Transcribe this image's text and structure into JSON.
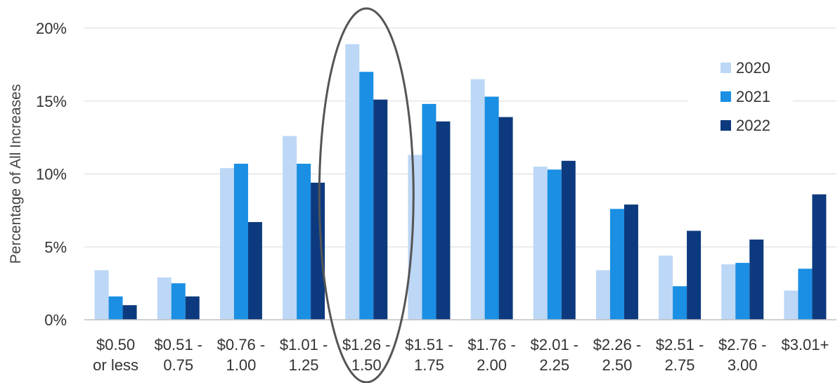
{
  "chart_data": {
    "type": "bar",
    "title": "",
    "xlabel": "",
    "ylabel": "Percentage of All Increases",
    "ylim": [
      0,
      20
    ],
    "yticks": [
      0,
      5,
      10,
      15,
      20
    ],
    "ytick_labels": [
      "0%",
      "5%",
      "10%",
      "15%",
      "20%"
    ],
    "grid": true,
    "legend_position": "top-right",
    "categories": [
      [
        "$0.50",
        "or less"
      ],
      [
        "$0.51 -",
        "0.75"
      ],
      [
        "$0.76 -",
        "1.00"
      ],
      [
        "$1.01 -",
        "1.25"
      ],
      [
        "$1.26 -",
        "1.50"
      ],
      [
        "$1.51 -",
        "1.75"
      ],
      [
        "$1.76 -",
        "2.00"
      ],
      [
        "$2.01 -",
        "2.25"
      ],
      [
        "$2.26 -",
        "2.50"
      ],
      [
        "$2.51 -",
        "2.75"
      ],
      [
        "$2.76 -",
        "3.00"
      ],
      [
        "$3.01+",
        ""
      ]
    ],
    "series": [
      {
        "name": "2020",
        "color": "#bdd7f6",
        "values": [
          3.4,
          2.9,
          10.4,
          12.6,
          18.9,
          11.3,
          16.5,
          10.5,
          3.4,
          4.4,
          3.8,
          2.0
        ]
      },
      {
        "name": "2021",
        "color": "#1a8fe3",
        "values": [
          1.6,
          2.5,
          10.7,
          10.7,
          17.0,
          14.8,
          15.3,
          10.3,
          7.6,
          2.3,
          3.9,
          3.5
        ]
      },
      {
        "name": "2022",
        "color": "#0d3a7e",
        "values": [
          1.0,
          1.6,
          6.7,
          9.4,
          15.1,
          13.6,
          13.9,
          10.9,
          7.9,
          6.1,
          5.5,
          8.6
        ]
      }
    ],
    "highlight": {
      "category_index": 4,
      "shape": "ellipse",
      "color": "#555555"
    }
  }
}
